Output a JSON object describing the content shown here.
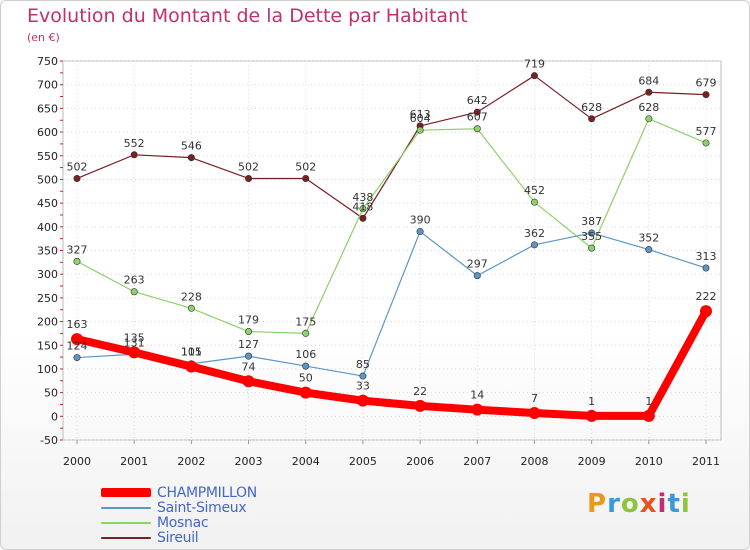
{
  "header": {
    "title": "Evolution du Montant de la Dette par Habitant",
    "subtitle": "(en €)"
  },
  "brand": {
    "text": "Proxiti",
    "colors": [
      "#e89a1c",
      "#3a9ad9",
      "#8cc63f",
      "#e8531c",
      "#c0306a",
      "#3a9ad9",
      "#8cc63f"
    ]
  },
  "chart_data": {
    "type": "line",
    "title": "Evolution du Montant de la Dette par Habitant",
    "subtitle": "(en €)",
    "xlabel": "",
    "ylabel": "",
    "x": [
      "2000",
      "2001",
      "2002",
      "2003",
      "2004",
      "2005",
      "2006",
      "2007",
      "2008",
      "2009",
      "2010",
      "2011"
    ],
    "ylim": [
      -50,
      750
    ],
    "yticks": [
      -50,
      0,
      50,
      100,
      150,
      200,
      250,
      300,
      350,
      400,
      450,
      500,
      550,
      600,
      650,
      700,
      750
    ],
    "grid": true,
    "legend_position": "bottom-left",
    "series": [
      {
        "name": "Sireuil",
        "color": "#7a1f22",
        "values": [
          502,
          552,
          546,
          502,
          502,
          418,
          613,
          642,
          719,
          628,
          684,
          679
        ]
      },
      {
        "name": "Mosnac",
        "color": "#8cd16a",
        "values": [
          327,
          263,
          228,
          179,
          175,
          438,
          604,
          607,
          452,
          355,
          628,
          577
        ]
      },
      {
        "name": "Saint-Simeux",
        "color": "#5b96c8",
        "values": [
          124,
          131,
          111,
          127,
          106,
          85,
          390,
          297,
          362,
          387,
          352,
          313
        ]
      },
      {
        "name": "CHAMPMILLON",
        "color": "#ff0000",
        "values": [
          163,
          135,
          105,
          74,
          50,
          33,
          22,
          14,
          7,
          1,
          1,
          222
        ]
      }
    ]
  }
}
